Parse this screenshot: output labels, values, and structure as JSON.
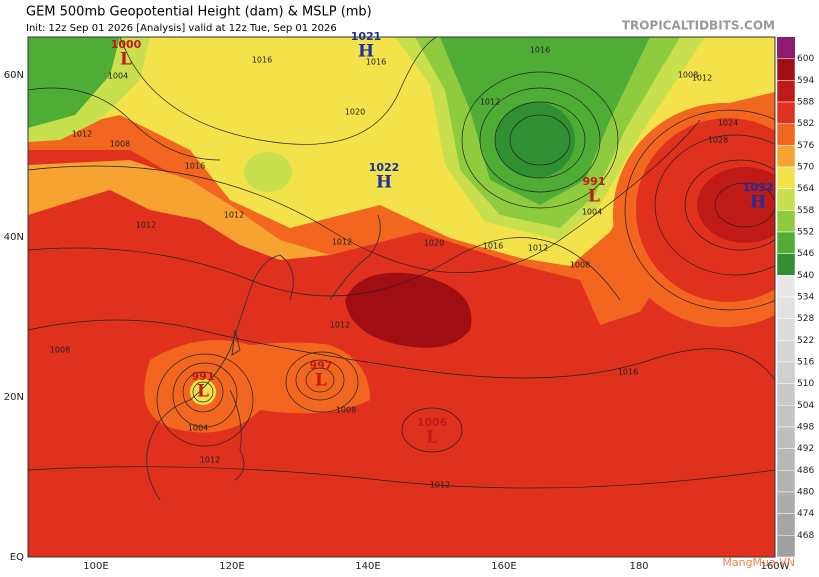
{
  "header": {
    "title": "GEM 500mb Geopotential Height (dam) & MSLP (mb)",
    "subtitle": "Init: 12z Sep 01 2026   [Analysis]   valid at 12z Tue, Sep 01 2026",
    "site": "TROPICALTIDBITS.COM"
  },
  "axes": {
    "lat_labels": [
      "60N",
      "40N",
      "20N",
      "EQ"
    ],
    "lon_labels": [
      "100E",
      "120E",
      "140E",
      "160E",
      "180",
      "160W"
    ]
  },
  "colorbar": {
    "above_color": "#8c1c6e",
    "levels": [
      600,
      594,
      588,
      582,
      576,
      570,
      564,
      558,
      552,
      546,
      540,
      534,
      528,
      522,
      516,
      510,
      504,
      498,
      492,
      486,
      480,
      474,
      468
    ],
    "colors": [
      "#a00e14",
      "#c01a16",
      "#e0301e",
      "#f2661f",
      "#f7a332",
      "#f3e24a",
      "#c9e04e",
      "#8fcb3f",
      "#4fad36",
      "#2f8f31",
      "#e8e8e8",
      "#e2e2e2",
      "#dcdcdc",
      "#d6d6d6",
      "#d0d0d0",
      "#cacaca",
      "#c4c4c4",
      "#bebebe",
      "#b8b8b8",
      "#b2b2b2",
      "#acacac",
      "#a6a6a6",
      "#a0a0a0"
    ]
  },
  "centers": [
    {
      "letter": "L",
      "value": "1000"
    },
    {
      "letter": "H",
      "value": "1021"
    },
    {
      "letter": "H",
      "value": "1022"
    },
    {
      "letter": "L",
      "value": "991"
    },
    {
      "letter": "H",
      "value": "1032"
    },
    {
      "letter": "L",
      "value": "991"
    },
    {
      "letter": "L",
      "value": "997"
    },
    {
      "letter": "L",
      "value": "1006"
    }
  ],
  "isobar_labels": [
    "1004",
    "1008",
    "1012",
    "1016",
    "1016",
    "1020",
    "1016",
    "1012",
    "1012",
    "1016",
    "1012",
    "1008",
    "1012",
    "1016",
    "1020",
    "1024",
    "1028",
    "1012",
    "1012",
    "1008",
    "1004",
    "1008",
    "1012",
    "1004",
    "1012",
    "1008",
    "1012",
    "1016"
  ],
  "watermark": "MangMua.VN"
}
